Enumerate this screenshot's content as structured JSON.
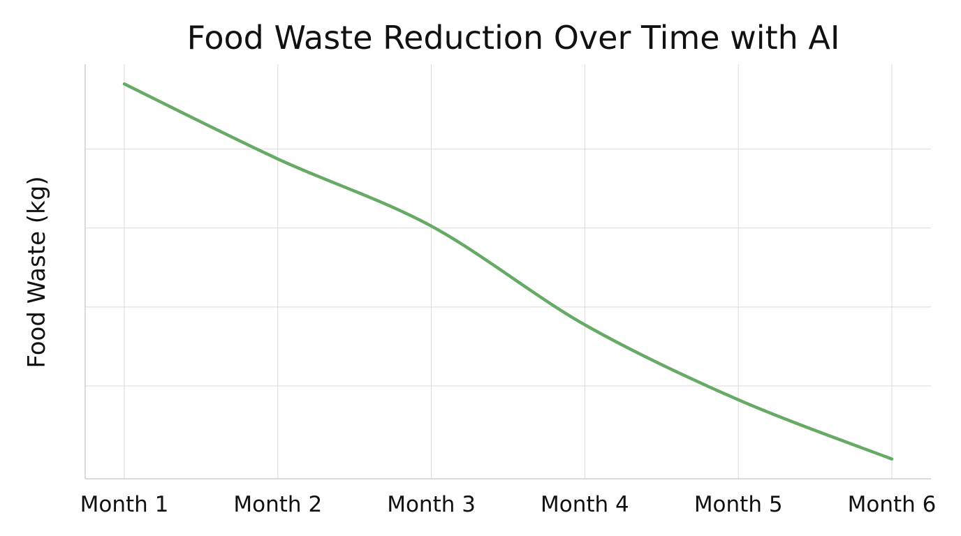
{
  "chart_data": {
    "type": "line",
    "title": "Food Waste Reduction Over Time with AI",
    "xlabel": "",
    "ylabel": "Food Waste (kg)",
    "categories": [
      "Month 1",
      "Month 2",
      "Month 3",
      "Month 4",
      "Month 5",
      "Month 6"
    ],
    "series": [
      {
        "values": [
          100,
          81,
          64,
          39,
          20,
          5
        ],
        "color": "#66aa66"
      }
    ],
    "ylim": [
      0,
      105
    ],
    "y_gridline_values": [
      23.5,
      43.5,
      63.5,
      83.5
    ],
    "y_tick_labels_shown": false,
    "grid": true,
    "legend": "none",
    "smooth": true
  }
}
